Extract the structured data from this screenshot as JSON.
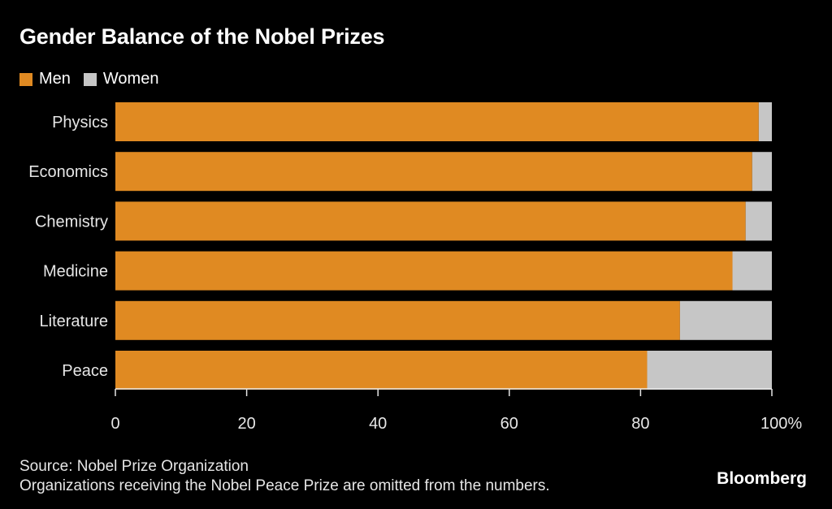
{
  "chart_data": {
    "type": "bar",
    "orientation": "horizontal",
    "stacked": true,
    "title": "Gender Balance of the Nobel Prizes",
    "categories": [
      "Physics",
      "Economics",
      "Chemistry",
      "Medicine",
      "Literature",
      "Peace"
    ],
    "series": [
      {
        "name": "Men",
        "color": "#e08a22",
        "values": [
          98,
          97,
          96,
          94,
          86,
          81
        ]
      },
      {
        "name": "Women",
        "color": "#c6c6c6",
        "values": [
          2,
          3,
          4,
          6,
          14,
          19
        ]
      }
    ],
    "xlim": [
      0,
      100
    ],
    "xticks": [
      {
        "value": 0,
        "label": "0"
      },
      {
        "value": 20,
        "label": "20"
      },
      {
        "value": 40,
        "label": "40"
      },
      {
        "value": 60,
        "label": "60"
      },
      {
        "value": 80,
        "label": "80"
      },
      {
        "value": 100,
        "label": "100%"
      }
    ],
    "legend_position": "top-left",
    "grid": false
  },
  "footer": {
    "source": "Source: Nobel Prize Organization",
    "note": "Organizations receiving the Nobel Peace Prize are omitted from the numbers."
  },
  "brand": "Bloomberg"
}
